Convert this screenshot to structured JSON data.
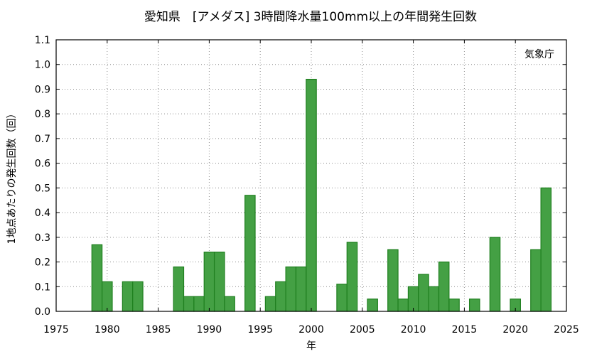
{
  "chart_data": {
    "type": "bar",
    "title": "愛知県　[アメダス] 3時間降水量100mm以上の年間発生回数",
    "annotation": "気象庁",
    "xlabel": "年",
    "ylabel": "1地点あたりの発生回数（回）",
    "xlim": [
      1975,
      2025
    ],
    "ylim": [
      0.0,
      1.1
    ],
    "x_ticks": [
      1975,
      1980,
      1985,
      1990,
      1995,
      2000,
      2005,
      2010,
      2015,
      2020,
      2025
    ],
    "y_ticks": [
      "0.0",
      "0.1",
      "0.2",
      "0.3",
      "0.4",
      "0.5",
      "0.6",
      "0.7",
      "0.8",
      "0.9",
      "1.0",
      "1.1"
    ],
    "grid": true,
    "series": [
      {
        "x": [
          1979,
          1980,
          1982,
          1983,
          1987,
          1988,
          1989,
          1990,
          1991,
          1992,
          1994,
          1996,
          1997,
          1998,
          1999,
          2000,
          2003,
          2004,
          2006,
          2008,
          2009,
          2010,
          2011,
          2012,
          2013,
          2014,
          2016,
          2018,
          2020,
          2022,
          2023
        ],
        "values": [
          0.27,
          0.12,
          0.12,
          0.12,
          0.18,
          0.06,
          0.06,
          0.24,
          0.24,
          0.06,
          0.47,
          0.06,
          0.12,
          0.18,
          0.18,
          0.94,
          0.11,
          0.28,
          0.05,
          0.25,
          0.05,
          0.1,
          0.15,
          0.1,
          0.2,
          0.05,
          0.05,
          0.3,
          0.05,
          0.25,
          0.5
        ],
        "color": "#44a044"
      }
    ]
  }
}
